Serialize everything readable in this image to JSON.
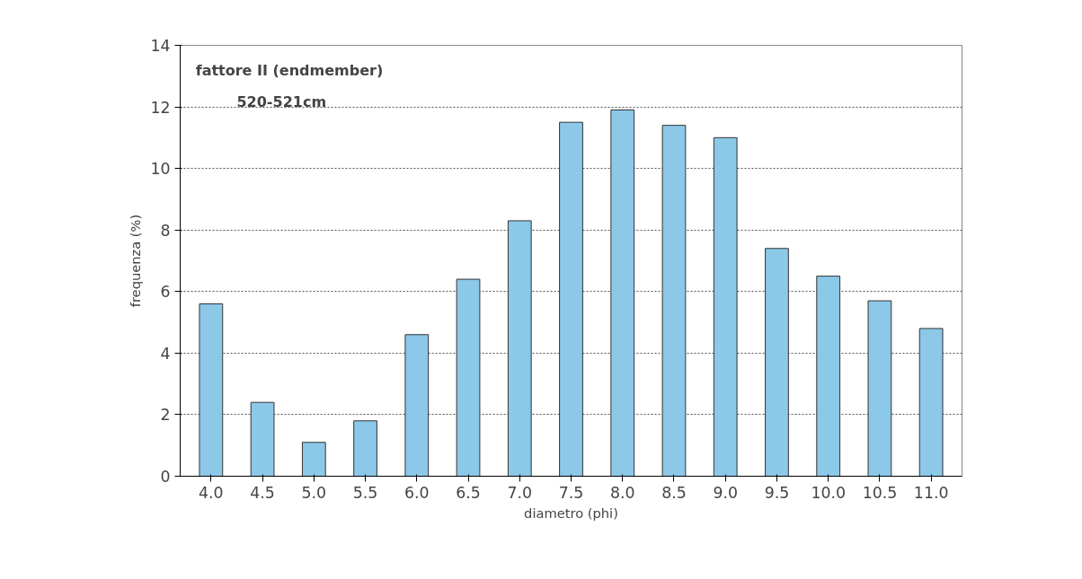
{
  "chart_data": {
    "type": "bar",
    "xlabel": "diametro (phi)",
    "ylabel": "frequenza (%)",
    "annotations": [
      "fattore II (endmember)",
      "520-521cm"
    ],
    "categories": [
      "4.0",
      "4.5",
      "5.0",
      "5.5",
      "6.0",
      "6.5",
      "7.0",
      "7.5",
      "8.0",
      "8.5",
      "9.0",
      "9.5",
      "10.0",
      "10.5",
      "11.0"
    ],
    "values": [
      5.6,
      2.4,
      1.1,
      1.8,
      4.6,
      6.4,
      8.3,
      11.5,
      11.9,
      11.4,
      11.0,
      7.4,
      6.5,
      5.7,
      4.8
    ],
    "color": "#8cc8e8",
    "ylim": [
      0,
      14
    ],
    "yticks": [
      0,
      2,
      4,
      6,
      8,
      10,
      12,
      14
    ],
    "grid": "y"
  }
}
